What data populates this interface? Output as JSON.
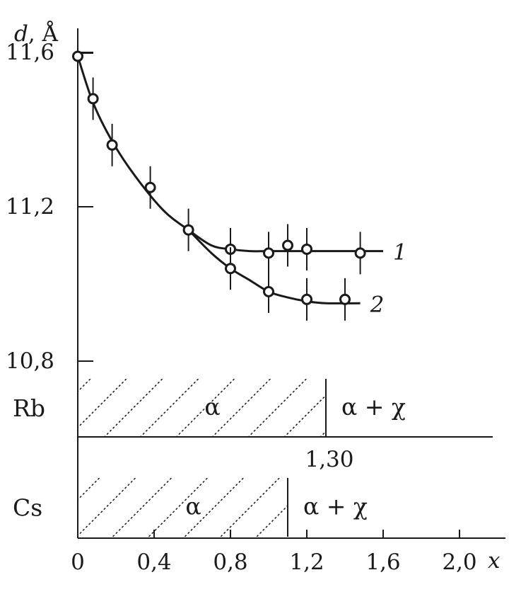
{
  "chart_data": {
    "type": "line",
    "title": "",
    "ylabel_italic": "d",
    "ylabel_rest": ", Å",
    "xlabel": "x",
    "xlim": [
      0,
      2.2
    ],
    "ylim": [
      10.8,
      11.65
    ],
    "x_ticks": [
      0,
      0.4,
      0.8,
      1.2,
      1.6,
      2.0
    ],
    "x_tick_labels": [
      "0",
      "0,4",
      "0,8",
      "1,2",
      "1,6",
      "2,0"
    ],
    "y_ticks": [
      10.8,
      11.2,
      11.6
    ],
    "y_tick_labels": [
      "10,8",
      "11,2",
      "11,6"
    ],
    "grid": false,
    "series": [
      {
        "name": "1",
        "x": [
          0,
          0.08,
          0.18,
          0.38,
          0.58,
          0.8,
          1.0,
          1.1,
          1.2,
          1.48
        ],
        "y": [
          11.59,
          11.48,
          11.36,
          11.25,
          11.14,
          11.09,
          11.08,
          11.1,
          11.09,
          11.08
        ],
        "curve_x": [
          0,
          0.08,
          0.18,
          0.3,
          0.45,
          0.58,
          0.7,
          0.8,
          0.9,
          1.0,
          1.2,
          1.4,
          1.6
        ],
        "curve_y": [
          11.59,
          11.47,
          11.37,
          11.28,
          11.19,
          11.14,
          11.1,
          11.09,
          11.085,
          11.085,
          11.085,
          11.085,
          11.085
        ]
      },
      {
        "name": "2",
        "x": [
          0.8,
          1.0,
          1.2,
          1.4
        ],
        "y": [
          11.04,
          10.98,
          10.96,
          10.96
        ],
        "curve_x": [
          0.58,
          0.7,
          0.8,
          0.9,
          1.0,
          1.1,
          1.2,
          1.3,
          1.48
        ],
        "curve_y": [
          11.14,
          11.08,
          11.04,
          11.01,
          10.98,
          10.965,
          10.955,
          10.95,
          10.95
        ]
      }
    ],
    "phase_bars": [
      {
        "element": "Rb",
        "single_phase_label": "α",
        "two_phase_label": "α + χ",
        "boundary_x": 1.3,
        "boundary_label": "1,30"
      },
      {
        "element": "Cs",
        "single_phase_label": "α",
        "two_phase_label": "α + χ",
        "boundary_x": 1.1,
        "boundary_label": ""
      }
    ]
  }
}
